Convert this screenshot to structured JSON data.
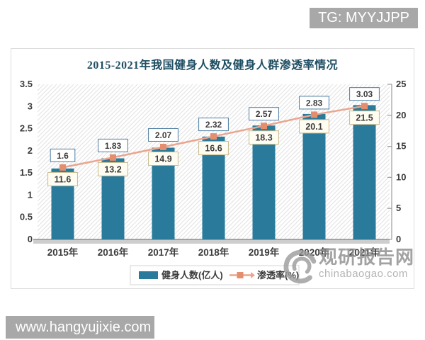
{
  "page": {
    "tg_badge": "TG: MYYJJPP",
    "site_badge": "www.hangyujixie.com"
  },
  "watermark": {
    "name": "观研报告网",
    "domain": "chinabaogao.com",
    "logo": "swirl-icon"
  },
  "chart_data": {
    "type": "bar+line",
    "title": "2015-2021年我国健身人数及健身人群渗透率情况",
    "categories": [
      "2015年",
      "2016年",
      "2017年",
      "2018年",
      "2019年",
      "2020年",
      "2021年"
    ],
    "series": [
      {
        "name": "健身人数(亿人)",
        "type": "bar",
        "axis": "left",
        "values": [
          1.6,
          1.83,
          2.07,
          2.32,
          2.57,
          2.83,
          3.03
        ]
      },
      {
        "name": "渗透率(%)",
        "type": "line",
        "axis": "right",
        "values": [
          11.6,
          13.2,
          14.9,
          16.6,
          18.3,
          20.1,
          21.5
        ]
      }
    ],
    "y_left": {
      "min": 0,
      "max": 3.5,
      "step": 0.5
    },
    "y_right": {
      "min": 0,
      "max": 25,
      "step": 5
    },
    "grid": false,
    "plot_background": "diagonal-hatch",
    "legend_position": "bottom",
    "data_labels": true
  },
  "style": {
    "bar_color": "#2a7b9b",
    "line_color": "#eaa58e",
    "marker_color": "#e58e6e",
    "bar_label_border": "#4d7ea3",
    "bar_label_bg": "#ffffff",
    "pct_label_border": "#c6b88c",
    "pct_label_bg": "#fffdf2",
    "hatch_color": "#e2e2e2",
    "axis_color": "#9b9b9b",
    "floor_color": "#cdcdcd",
    "text_color": "#3c3c3c",
    "title_color": "#1f4e63",
    "legend_border": "#d4d4d4",
    "badge_bg": "#a8a8a8"
  }
}
